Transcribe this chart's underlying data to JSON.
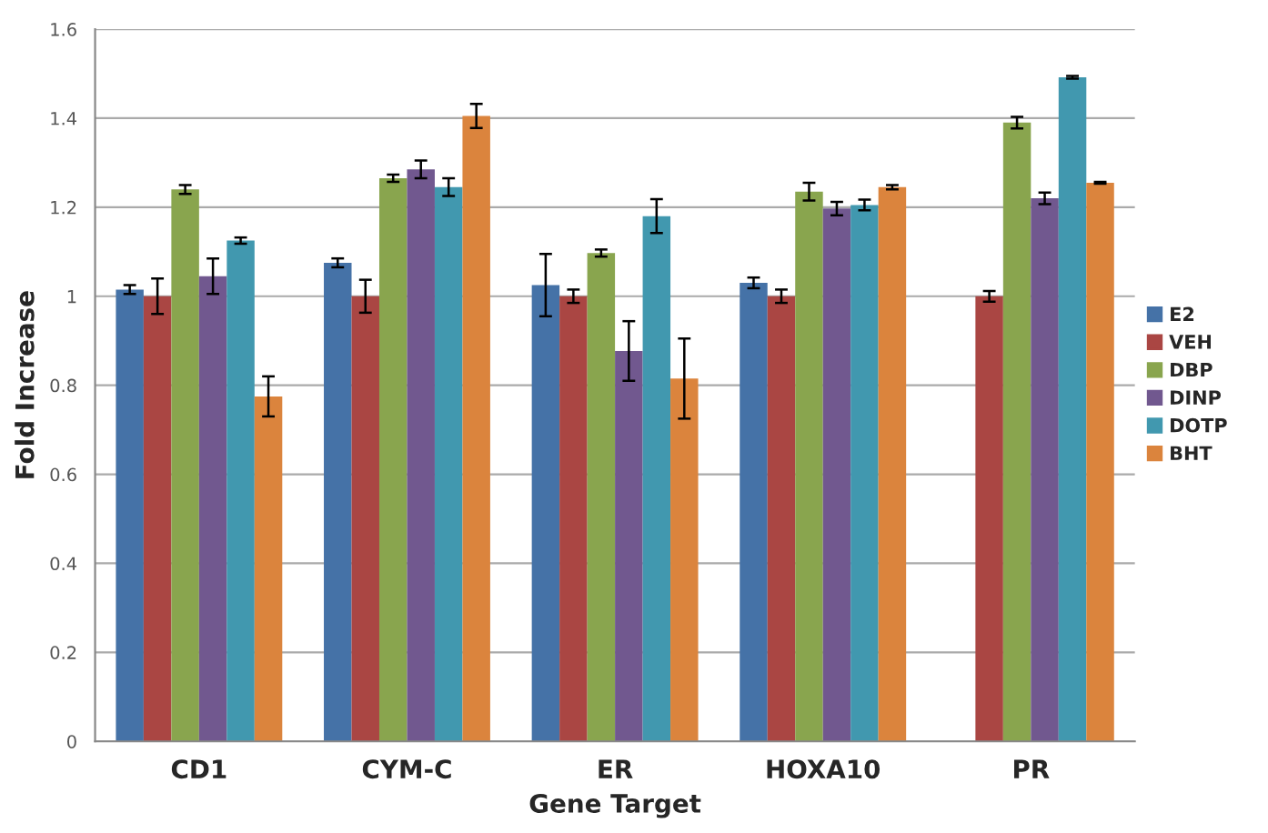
{
  "chart_data": {
    "type": "bar",
    "xlabel": "Gene Target",
    "ylabel": "Fold Increase",
    "categories": [
      "CD1",
      "CYM-C",
      "ER",
      "HOXA10",
      "PR"
    ],
    "series": [
      {
        "name": "E2",
        "color": "#4572a7",
        "values": [
          1.015,
          1.075,
          1.025,
          1.03,
          null
        ],
        "errors": [
          0.01,
          0.01,
          0.07,
          0.012,
          null
        ]
      },
      {
        "name": "VEH",
        "color": "#aa4643",
        "values": [
          1.0,
          1.0,
          1.0,
          1.0,
          1.0
        ],
        "errors": [
          0.04,
          0.037,
          0.015,
          0.015,
          0.012
        ]
      },
      {
        "name": "DBP",
        "color": "#89a54e",
        "values": [
          1.24,
          1.265,
          1.097,
          1.235,
          1.39
        ],
        "errors": [
          0.01,
          0.008,
          0.008,
          0.02,
          0.013
        ]
      },
      {
        "name": "DINP",
        "color": "#71588f",
        "values": [
          1.045,
          1.285,
          0.877,
          1.197,
          1.22
        ],
        "errors": [
          0.04,
          0.02,
          0.067,
          0.015,
          0.013
        ]
      },
      {
        "name": "DOTP",
        "color": "#4198af",
        "values": [
          1.125,
          1.245,
          1.18,
          1.205,
          1.492
        ],
        "errors": [
          0.007,
          0.02,
          0.038,
          0.012,
          0.003
        ]
      },
      {
        "name": "BHT",
        "color": "#db843d",
        "values": [
          0.775,
          1.405,
          0.815,
          1.245,
          1.255
        ],
        "errors": [
          0.045,
          0.027,
          0.09,
          0.005,
          0.002
        ]
      }
    ],
    "ylim": [
      0,
      1.6
    ],
    "yticks": [
      0,
      0.2,
      0.4,
      0.6,
      0.8,
      1,
      1.2,
      1.4,
      1.6
    ],
    "grid": "y",
    "legend": "right"
  }
}
